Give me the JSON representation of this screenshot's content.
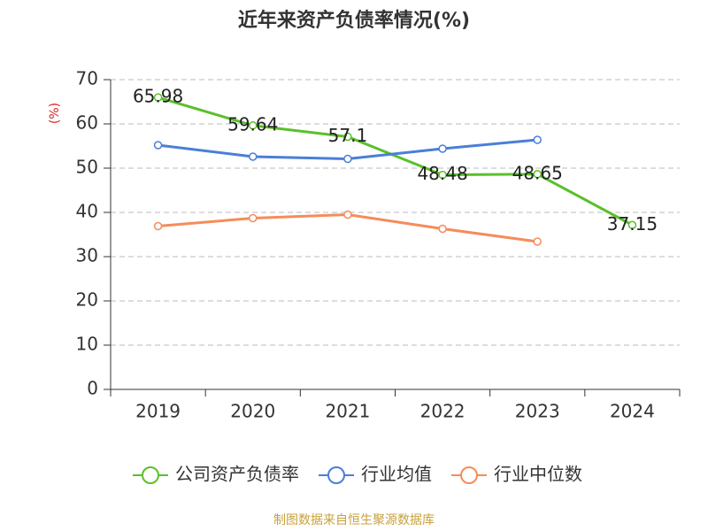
{
  "chart_data": {
    "type": "line",
    "title": "近年来资产负债率情况(%)",
    "y_label": "(%)",
    "categories": [
      "2019",
      "2020",
      "2021",
      "2022",
      "2023",
      "2024"
    ],
    "series": [
      {
        "name": "公司资产负债率",
        "color": "#5ac02a",
        "values": [
          65.98,
          59.64,
          57.1,
          48.48,
          48.65,
          37.15
        ],
        "show_labels": true
      },
      {
        "name": "行业均值",
        "color": "#4b7fd6",
        "values": [
          55.2,
          52.6,
          52.1,
          54.4,
          56.4,
          null
        ],
        "show_labels": false
      },
      {
        "name": "行业中位数",
        "color": "#f58c5a",
        "values": [
          36.9,
          38.7,
          39.5,
          36.3,
          33.4,
          null
        ],
        "show_labels": false
      }
    ],
    "ylim": [
      0,
      70
    ],
    "yticks": [
      0,
      10,
      20,
      30,
      40,
      50,
      60,
      70
    ],
    "grid": true,
    "legend": "bottom",
    "source": "制图数据来自恒生聚源数据库"
  }
}
